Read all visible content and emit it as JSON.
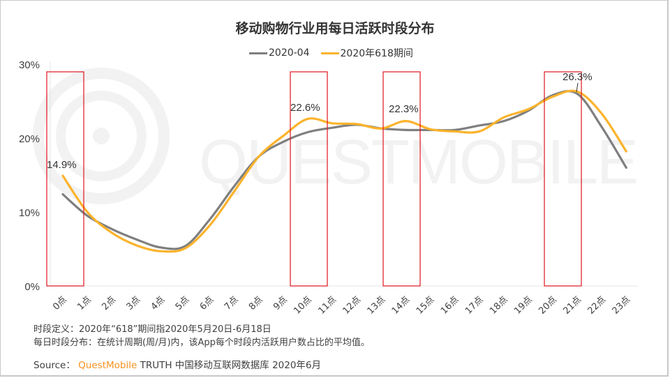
{
  "title": "移动购物行业用每日活跃时段分布",
  "legend": [
    {
      "label": "2020-04",
      "color": "#7f7f7f"
    },
    {
      "label": "2020年618期间",
      "color": "#fbb32b"
    }
  ],
  "footnotes": {
    "line1": "时段定义：2020年“618”期间指2020年5月20日-6月18日",
    "line2": "每日时段分布：在统计周期(周/月)内，该App每个时段内活跃用户数占比的平均值。"
  },
  "source": {
    "prefix": "Source：",
    "brand": "QuestMobile",
    "rest": "TRUTH 中国移动互联网数据库 2020年6月"
  },
  "watermark": "QUESTMOBILE",
  "colors": {
    "series_2020_04": "#7f7f7f",
    "series_618": "#fbb32b",
    "highlight_box": "#e0141e",
    "brand": "#f7931e"
  },
  "chart_data": {
    "type": "line",
    "title": "移动购物行业用每日活跃时段分布",
    "xlabel": "",
    "ylabel": "",
    "categories": [
      "0点",
      "1点",
      "2点",
      "3点",
      "4点",
      "5点",
      "6点",
      "7点",
      "8点",
      "9点",
      "10点",
      "11点",
      "12点",
      "13点",
      "14点",
      "15点",
      "16点",
      "17点",
      "18点",
      "19点",
      "20点",
      "21点",
      "22点",
      "23点"
    ],
    "series": [
      {
        "name": "2020-04",
        "values": [
          12.4,
          9.5,
          7.7,
          6.3,
          5.2,
          5.4,
          9.0,
          13.5,
          17.5,
          19.5,
          20.8,
          21.4,
          21.8,
          21.3,
          21.1,
          21.1,
          21.1,
          21.7,
          22.3,
          23.7,
          25.8,
          26.0,
          21.5,
          16.0
        ]
      },
      {
        "name": "2020年618期间",
        "values": [
          14.9,
          10.0,
          7.2,
          5.5,
          4.7,
          5.1,
          8.2,
          12.8,
          17.5,
          20.3,
          22.6,
          22.0,
          21.9,
          21.3,
          22.3,
          21.2,
          20.9,
          20.9,
          22.8,
          23.9,
          25.6,
          26.3,
          23.3,
          18.2
        ]
      }
    ],
    "yticks": [
      "0%",
      "10%",
      "20%",
      "30%"
    ],
    "ylim": [
      0,
      30
    ],
    "grid": false,
    "legend_position": "top",
    "annotations": [
      {
        "x": "0点",
        "label": "14.9%"
      },
      {
        "x": "10点",
        "label": "22.6%"
      },
      {
        "x": "14点",
        "label": "22.3%"
      },
      {
        "x": "21点",
        "label": "26.3%"
      }
    ],
    "highlight_boxes": [
      {
        "from": "0点",
        "to": "0点"
      },
      {
        "from": "10点",
        "to": "10点"
      },
      {
        "from": "14点",
        "to": "14点"
      },
      {
        "from": "21点",
        "to": "21点"
      }
    ]
  }
}
